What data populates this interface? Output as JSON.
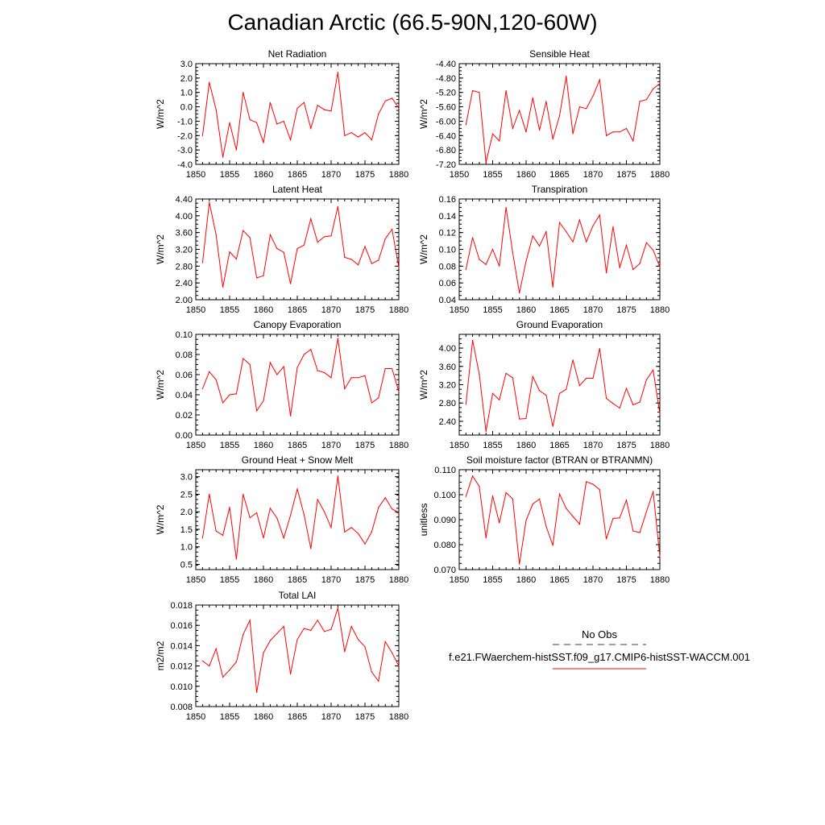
{
  "page": {
    "title": "Canadian Arctic (66.5-90N,120-60W)"
  },
  "legend": {
    "obs_label": "No Obs",
    "model_label": "f.e21.FWaerchem-histSST.f09_g17.CMIP6-histSST-WACCM.001",
    "obs_color": "#3a3a9a",
    "model_color": "#ff0000"
  },
  "chart_data": [
    {
      "type": "line",
      "title": "Net Radiation",
      "ylabel": "W/m^2",
      "xlim": [
        1850,
        1880
      ],
      "ylim": [
        -4.0,
        3.0
      ],
      "xticks": [
        "1850",
        "1855",
        "1860",
        "1865",
        "1870",
        "1875",
        "1880"
      ],
      "yticks": [
        "3.0",
        "2.0",
        "1.0",
        "0.0",
        "-1.0",
        "-2.0",
        "-3.0",
        "-4.0"
      ],
      "x": [
        1851,
        1852,
        1853,
        1854,
        1855,
        1856,
        1857,
        1858,
        1859,
        1860,
        1861,
        1862,
        1863,
        1864,
        1865,
        1866,
        1867,
        1868,
        1869,
        1870,
        1871,
        1872,
        1873,
        1874,
        1875,
        1876,
        1877,
        1878,
        1879,
        1880
      ],
      "values": [
        -2.0,
        1.7,
        -0.2,
        -3.5,
        -1.1,
        -3.0,
        1.0,
        -0.9,
        -1.1,
        -2.5,
        0.3,
        -1.2,
        -1.0,
        -2.3,
        -0.1,
        0.3,
        -1.5,
        0.1,
        -0.2,
        -0.3,
        2.4,
        -2.0,
        -1.8,
        -2.1,
        -1.8,
        -2.3,
        -0.5,
        0.4,
        0.6,
        -0.1
      ],
      "series": [
        {
          "name": "f.e21.FWaerchem-histSST.f09_g17.CMIP6-histSST-WACCM.001",
          "color": "#ff0000"
        }
      ]
    },
    {
      "type": "line",
      "title": "Sensible Heat",
      "ylabel": "W/m^2",
      "xlim": [
        1850,
        1880
      ],
      "ylim": [
        -7.2,
        -4.4
      ],
      "xticks": [
        "1850",
        "1855",
        "1860",
        "1865",
        "1870",
        "1875",
        "1880"
      ],
      "yticks": [
        "-4.40",
        "-4.80",
        "-5.20",
        "-5.60",
        "-6.00",
        "-6.40",
        "-6.80",
        "-7.20"
      ],
      "x": [
        1851,
        1852,
        1853,
        1854,
        1855,
        1856,
        1857,
        1858,
        1859,
        1860,
        1861,
        1862,
        1863,
        1864,
        1865,
        1866,
        1867,
        1868,
        1869,
        1870,
        1871,
        1872,
        1873,
        1874,
        1875,
        1876,
        1877,
        1878,
        1879,
        1880
      ],
      "values": [
        -6.1,
        -5.15,
        -5.2,
        -7.15,
        -6.35,
        -6.55,
        -5.15,
        -6.2,
        -5.7,
        -6.3,
        -5.35,
        -6.25,
        -5.45,
        -6.5,
        -5.85,
        -4.75,
        -6.35,
        -5.6,
        -5.65,
        -5.3,
        -4.85,
        -6.4,
        -6.3,
        -6.3,
        -6.2,
        -6.55,
        -5.45,
        -5.4,
        -5.1,
        -4.95
      ],
      "series": [
        {
          "name": "f.e21.FWaerchem-histSST.f09_g17.CMIP6-histSST-WACCM.001",
          "color": "#ff0000"
        }
      ]
    },
    {
      "type": "line",
      "title": "Latent Heat",
      "ylabel": "W/m^2",
      "xlim": [
        1850,
        1880
      ],
      "ylim": [
        2.0,
        4.4
      ],
      "xticks": [
        "1850",
        "1855",
        "1860",
        "1865",
        "1870",
        "1875",
        "1880"
      ],
      "yticks": [
        "4.40",
        "4.00",
        "3.60",
        "3.20",
        "2.80",
        "2.40",
        "2.00"
      ],
      "x": [
        1851,
        1852,
        1853,
        1854,
        1855,
        1856,
        1857,
        1858,
        1859,
        1860,
        1861,
        1862,
        1863,
        1864,
        1865,
        1866,
        1867,
        1868,
        1869,
        1870,
        1871,
        1872,
        1873,
        1874,
        1875,
        1876,
        1877,
        1878,
        1879,
        1880
      ],
      "values": [
        2.88,
        4.32,
        3.55,
        2.3,
        3.14,
        2.97,
        3.65,
        3.48,
        2.52,
        2.57,
        3.55,
        3.22,
        3.13,
        2.38,
        3.22,
        3.3,
        3.93,
        3.37,
        3.5,
        3.52,
        4.22,
        3.01,
        2.96,
        2.83,
        3.27,
        2.86,
        2.94,
        3.45,
        3.68,
        2.77
      ],
      "series": [
        {
          "name": "f.e21.FWaerchem-histSST.f09_g17.CMIP6-histSST-WACCM.001",
          "color": "#ff0000"
        }
      ]
    },
    {
      "type": "line",
      "title": "Transpiration",
      "ylabel": "W/m^2",
      "xlim": [
        1850,
        1880
      ],
      "ylim": [
        0.04,
        0.16
      ],
      "xticks": [
        "1850",
        "1855",
        "1860",
        "1865",
        "1870",
        "1875",
        "1880"
      ],
      "yticks": [
        "0.16",
        "0.14",
        "0.12",
        "0.10",
        "0.08",
        "0.06",
        "0.04"
      ],
      "x": [
        1851,
        1852,
        1853,
        1854,
        1855,
        1856,
        1857,
        1858,
        1859,
        1860,
        1861,
        1862,
        1863,
        1864,
        1865,
        1866,
        1867,
        1868,
        1869,
        1870,
        1871,
        1872,
        1873,
        1874,
        1875,
        1876,
        1877,
        1878,
        1879,
        1880
      ],
      "values": [
        0.076,
        0.114,
        0.088,
        0.082,
        0.1,
        0.08,
        0.15,
        0.096,
        0.048,
        0.086,
        0.116,
        0.104,
        0.121,
        0.055,
        0.132,
        0.121,
        0.109,
        0.135,
        0.109,
        0.128,
        0.141,
        0.072,
        0.127,
        0.078,
        0.105,
        0.076,
        0.083,
        0.108,
        0.099,
        0.079
      ],
      "series": [
        {
          "name": "f.e21.FWaerchem-histSST.f09_g17.CMIP6-histSST-WACCM.001",
          "color": "#ff0000"
        }
      ]
    },
    {
      "type": "line",
      "title": "Canopy Evaporation",
      "ylabel": "W/m^2",
      "xlim": [
        1850,
        1880
      ],
      "ylim": [
        0.0,
        0.1
      ],
      "xticks": [
        "1850",
        "1855",
        "1860",
        "1865",
        "1870",
        "1875",
        "1880"
      ],
      "yticks": [
        "0.10",
        "0.08",
        "0.06",
        "0.04",
        "0.02",
        "0.00"
      ],
      "x": [
        1851,
        1852,
        1853,
        1854,
        1855,
        1856,
        1857,
        1858,
        1859,
        1860,
        1861,
        1862,
        1863,
        1864,
        1865,
        1866,
        1867,
        1868,
        1869,
        1870,
        1871,
        1872,
        1873,
        1874,
        1875,
        1876,
        1877,
        1878,
        1879,
        1880
      ],
      "values": [
        0.046,
        0.063,
        0.055,
        0.032,
        0.04,
        0.041,
        0.076,
        0.07,
        0.024,
        0.034,
        0.072,
        0.06,
        0.068,
        0.019,
        0.067,
        0.08,
        0.085,
        0.064,
        0.062,
        0.057,
        0.096,
        0.046,
        0.057,
        0.057,
        0.059,
        0.032,
        0.037,
        0.066,
        0.066,
        0.043
      ],
      "series": [
        {
          "name": "f.e21.FWaerchem-histSST.f09_g17.CMIP6-histSST-WACCM.001",
          "color": "#ff0000"
        }
      ]
    },
    {
      "type": "line",
      "title": "Ground Evaporation",
      "ylabel": "W/m^2",
      "xlim": [
        1850,
        1880
      ],
      "ylim": [
        2.1,
        4.3
      ],
      "xticks": [
        "1850",
        "1855",
        "1860",
        "1865",
        "1870",
        "1875",
        "1880"
      ],
      "yticks": [
        "4.00",
        "3.60",
        "3.20",
        "2.80",
        "2.40"
      ],
      "ytickvals": [
        4.0,
        3.6,
        3.2,
        2.8,
        2.4
      ],
      "x": [
        1851,
        1852,
        1853,
        1854,
        1855,
        1856,
        1857,
        1858,
        1859,
        1860,
        1861,
        1862,
        1863,
        1864,
        1865,
        1866,
        1867,
        1868,
        1869,
        1870,
        1871,
        1872,
        1873,
        1874,
        1875,
        1876,
        1877,
        1878,
        1879,
        1880
      ],
      "values": [
        2.77,
        4.17,
        3.43,
        2.18,
        3.01,
        2.87,
        3.45,
        3.35,
        2.45,
        2.46,
        3.38,
        3.07,
        2.97,
        2.29,
        3.01,
        3.1,
        3.74,
        3.18,
        3.34,
        3.34,
        3.99,
        2.9,
        2.79,
        2.69,
        3.12,
        2.76,
        2.82,
        3.31,
        3.52,
        2.56
      ],
      "series": [
        {
          "name": "f.e21.FWaerchem-histSST.f09_g17.CMIP6-histSST-WACCM.001",
          "color": "#ff0000"
        }
      ]
    },
    {
      "type": "line",
      "title": "Ground Heat + Snow Melt",
      "ylabel": "W/m^2",
      "xlim": [
        1850,
        1880
      ],
      "ylim": [
        0.35,
        3.2
      ],
      "xticks": [
        "1850",
        "1855",
        "1860",
        "1865",
        "1870",
        "1875",
        "1880"
      ],
      "yticks": [
        "3.0",
        "2.5",
        "2.0",
        "1.5",
        "1.0",
        "0.5"
      ],
      "ytickvals": [
        3.0,
        2.5,
        2.0,
        1.5,
        1.0,
        0.5
      ],
      "x": [
        1851,
        1852,
        1853,
        1854,
        1855,
        1856,
        1857,
        1858,
        1859,
        1860,
        1861,
        1862,
        1863,
        1864,
        1865,
        1866,
        1867,
        1868,
        1869,
        1870,
        1871,
        1872,
        1873,
        1874,
        1875,
        1876,
        1877,
        1878,
        1879,
        1880
      ],
      "values": [
        1.25,
        2.5,
        1.45,
        1.33,
        2.13,
        0.65,
        2.5,
        1.83,
        1.97,
        1.25,
        2.1,
        1.82,
        1.25,
        1.9,
        2.65,
        1.92,
        0.95,
        2.35,
        2.0,
        1.55,
        3.02,
        1.42,
        1.55,
        1.38,
        1.08,
        1.43,
        2.12,
        2.4,
        2.08,
        1.98
      ],
      "series": [
        {
          "name": "f.e21.FWaerchem-histSST.f09_g17.CMIP6-histSST-WACCM.001",
          "color": "#ff0000"
        }
      ]
    },
    {
      "type": "line",
      "title": "Soil moisture factor (BTRAN or BTRANMN)",
      "ylabel": "unitless",
      "xlim": [
        1850,
        1880
      ],
      "ylim": [
        0.07,
        0.11
      ],
      "xticks": [
        "1850",
        "1855",
        "1860",
        "1865",
        "1870",
        "1875",
        "1880"
      ],
      "yticks": [
        "0.110",
        "0.100",
        "0.090",
        "0.080",
        "0.070"
      ],
      "x": [
        1851,
        1852,
        1853,
        1854,
        1855,
        1856,
        1857,
        1858,
        1859,
        1860,
        1861,
        1862,
        1863,
        1864,
        1865,
        1866,
        1867,
        1868,
        1869,
        1870,
        1871,
        1872,
        1873,
        1874,
        1875,
        1876,
        1877,
        1878,
        1879,
        1880
      ],
      "values": [
        0.0993,
        0.1075,
        0.1033,
        0.0827,
        0.0995,
        0.0887,
        0.1008,
        0.0983,
        0.0722,
        0.0897,
        0.0963,
        0.0983,
        0.0873,
        0.0797,
        0.1003,
        0.0945,
        0.0913,
        0.0882,
        0.1052,
        0.1042,
        0.102,
        0.0823,
        0.0905,
        0.0907,
        0.0978,
        0.0855,
        0.0848,
        0.0932,
        0.1013,
        0.0752
      ],
      "series": [
        {
          "name": "f.e21.FWaerchem-histSST.f09_g17.CMIP6-histSST-WACCM.001",
          "color": "#ff0000"
        }
      ]
    },
    {
      "type": "line",
      "title": "Total LAI",
      "ylabel": "m2/m2",
      "xlim": [
        1850,
        1880
      ],
      "ylim": [
        0.008,
        0.018
      ],
      "xticks": [
        "1850",
        "1855",
        "1860",
        "1865",
        "1870",
        "1875",
        "1880"
      ],
      "yticks": [
        "0.018",
        "0.016",
        "0.014",
        "0.012",
        "0.010",
        "0.008"
      ],
      "x": [
        1851,
        1852,
        1853,
        1854,
        1855,
        1856,
        1857,
        1858,
        1859,
        1860,
        1861,
        1862,
        1863,
        1864,
        1865,
        1866,
        1867,
        1868,
        1869,
        1870,
        1871,
        1872,
        1873,
        1874,
        1875,
        1876,
        1877,
        1878,
        1879,
        1880
      ],
      "values": [
        0.0125,
        0.012,
        0.0137,
        0.0109,
        0.0116,
        0.0124,
        0.0151,
        0.0165,
        0.0094,
        0.0133,
        0.0145,
        0.0152,
        0.0159,
        0.0112,
        0.0146,
        0.0157,
        0.0155,
        0.0165,
        0.0154,
        0.0156,
        0.0177,
        0.0134,
        0.0159,
        0.0146,
        0.0139,
        0.0114,
        0.0105,
        0.0144,
        0.0133,
        0.012
      ],
      "series": [
        {
          "name": "f.e21.FWaerchem-histSST.f09_g17.CMIP6-histSST-WACCM.001",
          "color": "#ff0000"
        }
      ]
    }
  ]
}
